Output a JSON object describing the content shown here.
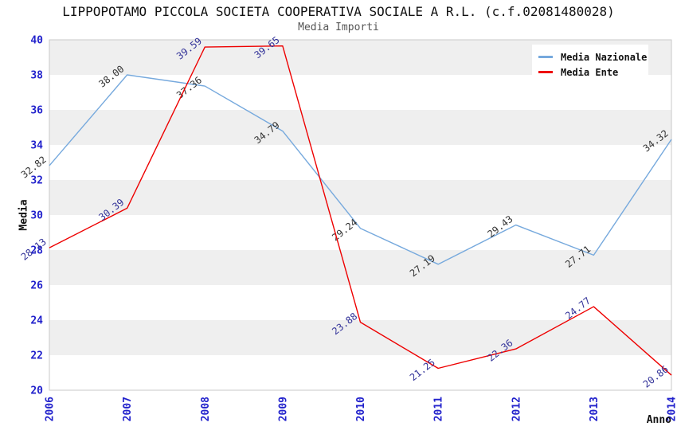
{
  "chart_data": {
    "type": "line",
    "title": "LIPPOPOTAMO PICCOLA SOCIETA COOPERATIVA SOCIALE A R.L. (c.f.02081480028)",
    "subtitle": "Media Importi",
    "xlabel": "Anno",
    "ylabel": "Media",
    "categories": [
      "2006",
      "2007",
      "2008",
      "2009",
      "2010",
      "2011",
      "2012",
      "2013",
      "2014"
    ],
    "series": [
      {
        "name": "Media Nazionale",
        "color": "#76a9dd",
        "label_color": "#333333",
        "values": [
          32.82,
          38.0,
          37.36,
          34.79,
          29.24,
          27.19,
          29.43,
          27.71,
          34.32
        ],
        "labels": [
          "32.82",
          "38.00",
          "37.36",
          "34.79",
          "29.24",
          "27.19",
          "29.43",
          "27.71",
          "34.32"
        ]
      },
      {
        "name": "Media Ente",
        "color": "#ee0000",
        "label_color": "#333399",
        "values": [
          28.13,
          30.39,
          39.59,
          39.65,
          23.88,
          21.25,
          22.36,
          24.77,
          20.86
        ],
        "labels": [
          "28.13",
          "30.39",
          "39.59",
          "39.65",
          "23.88",
          "21.25",
          "22.36",
          "24.77",
          "20.86"
        ]
      }
    ],
    "ylim": [
      20,
      40
    ],
    "y_tick_step": 2,
    "y_ticks": [
      "20",
      "22",
      "24",
      "26",
      "28",
      "30",
      "32",
      "34",
      "36",
      "38",
      "40"
    ],
    "grid": "horizontal-alternating-bands",
    "legend_position": "top-right",
    "colors": {
      "background": "#ffffff",
      "band": "#efefef",
      "plot_border": "#c8c8c8",
      "tick_label": "#2222cc",
      "subtitle": "#555555"
    }
  }
}
